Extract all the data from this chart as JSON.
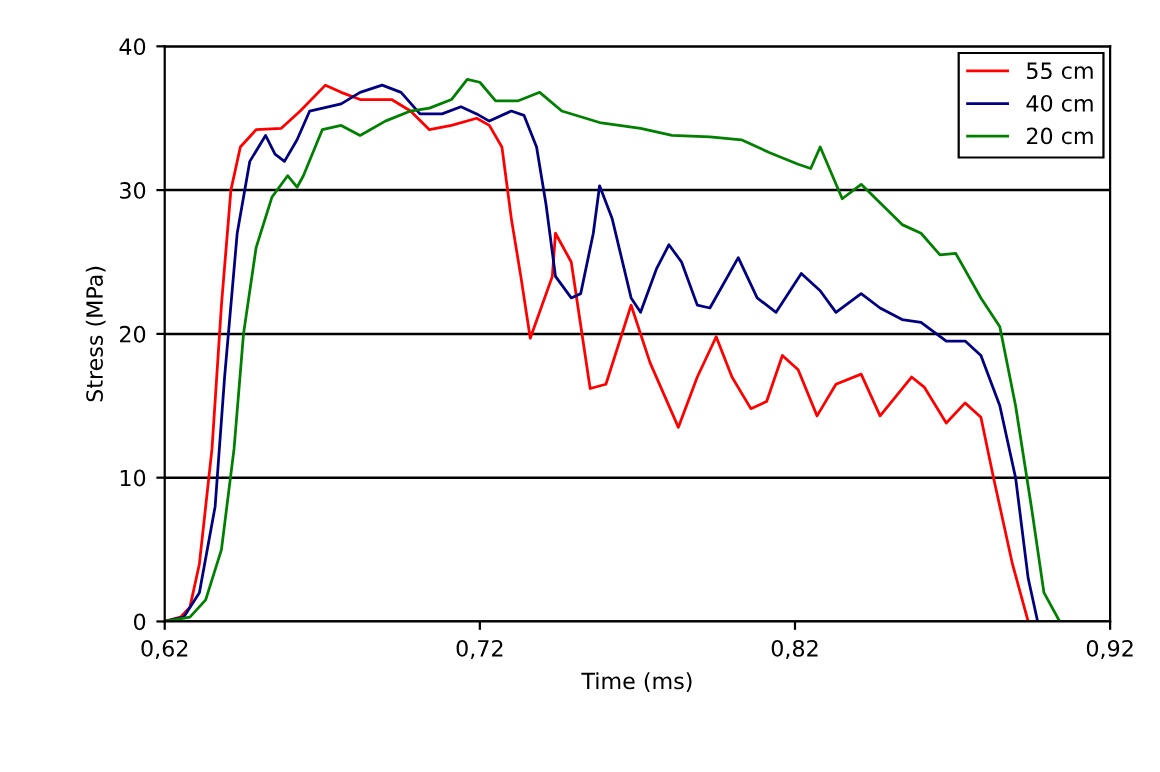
{
  "chart_data": {
    "type": "line",
    "xlabel": "Time (ms)",
    "ylabel": "Stress (MPa)",
    "xlim": [
      0.62,
      0.92
    ],
    "ylim": [
      0,
      40
    ],
    "xticks": [
      {
        "value": 0.62,
        "label": "0,62"
      },
      {
        "value": 0.72,
        "label": "0,72"
      },
      {
        "value": 0.82,
        "label": "0,82"
      },
      {
        "value": 0.92,
        "label": "0,92"
      }
    ],
    "yticks": [
      0,
      10,
      20,
      30,
      40
    ],
    "grid": "y",
    "legend": "top right",
    "marker": "none",
    "line_style": "solid",
    "series": [
      {
        "name": "55 cm",
        "color": "#ff0000",
        "x": [
          0.62,
          0.625,
          0.628,
          0.631,
          0.635,
          0.638,
          0.641,
          0.644,
          0.649,
          0.657,
          0.663,
          0.671,
          0.676,
          0.682,
          0.692,
          0.698,
          0.704,
          0.711,
          0.719,
          0.723,
          0.727,
          0.73,
          0.733,
          0.736,
          0.743,
          0.744,
          0.749,
          0.755,
          0.76,
          0.768,
          0.774,
          0.783,
          0.789,
          0.795,
          0.8,
          0.806,
          0.811,
          0.816,
          0.821,
          0.827,
          0.833,
          0.841,
          0.847,
          0.857,
          0.861,
          0.868,
          0.874,
          0.879,
          0.883,
          0.889,
          0.894
        ],
        "values": [
          0,
          0.3,
          1,
          4,
          12,
          22,
          30,
          33,
          34.2,
          34.3,
          35.5,
          37.3,
          36.8,
          36.3,
          36.3,
          35.5,
          34.2,
          34.5,
          35,
          34.5,
          33,
          28,
          24,
          19.7,
          24,
          27,
          25,
          16.2,
          16.5,
          22,
          18,
          13.5,
          17,
          19.8,
          17,
          14.8,
          15.3,
          18.5,
          17.5,
          14.3,
          16.5,
          17.2,
          14.3,
          17,
          16.3,
          13.8,
          15.2,
          14.2,
          10,
          4,
          0
        ]
      },
      {
        "name": "40 cm",
        "color": "#000080",
        "x": [
          0.62,
          0.626,
          0.631,
          0.636,
          0.639,
          0.643,
          0.647,
          0.652,
          0.655,
          0.658,
          0.662,
          0.666,
          0.676,
          0.682,
          0.689,
          0.695,
          0.701,
          0.708,
          0.714,
          0.719,
          0.723,
          0.73,
          0.734,
          0.738,
          0.741,
          0.744,
          0.749,
          0.752,
          0.756,
          0.758,
          0.762,
          0.768,
          0.771,
          0.776,
          0.78,
          0.784,
          0.789,
          0.793,
          0.802,
          0.808,
          0.814,
          0.822,
          0.828,
          0.833,
          0.841,
          0.847,
          0.854,
          0.86,
          0.868,
          0.874,
          0.879,
          0.885,
          0.89,
          0.894,
          0.897
        ],
        "values": [
          0,
          0.3,
          2,
          8,
          17,
          27,
          32,
          33.8,
          32.5,
          32,
          33.5,
          35.5,
          36,
          36.8,
          37.3,
          36.8,
          35.3,
          35.3,
          35.8,
          35.3,
          34.8,
          35.5,
          35.2,
          33,
          29,
          24,
          22.5,
          22.8,
          27,
          30.3,
          28,
          22.5,
          21.5,
          24.5,
          26.2,
          25,
          22,
          21.8,
          25.3,
          22.5,
          21.5,
          24.2,
          23,
          21.5,
          22.8,
          21.8,
          21,
          20.8,
          19.5,
          19.5,
          18.5,
          15,
          10,
          3,
          0
        ]
      },
      {
        "name": "20 cm",
        "color": "#008000",
        "x": [
          0.62,
          0.628,
          0.633,
          0.638,
          0.642,
          0.645,
          0.649,
          0.654,
          0.659,
          0.662,
          0.664,
          0.67,
          0.676,
          0.682,
          0.69,
          0.698,
          0.704,
          0.711,
          0.716,
          0.72,
          0.725,
          0.732,
          0.739,
          0.746,
          0.758,
          0.771,
          0.781,
          0.793,
          0.803,
          0.812,
          0.821,
          0.825,
          0.828,
          0.835,
          0.841,
          0.854,
          0.86,
          0.866,
          0.871,
          0.879,
          0.885,
          0.89,
          0.895,
          0.899,
          0.904
        ],
        "values": [
          0,
          0.3,
          1.5,
          5,
          12,
          20,
          26,
          29.5,
          31,
          30.2,
          31,
          34.2,
          34.5,
          33.8,
          34.8,
          35.5,
          35.7,
          36.3,
          37.7,
          37.5,
          36.2,
          36.2,
          36.8,
          35.5,
          34.7,
          34.3,
          33.8,
          33.7,
          33.5,
          32.6,
          31.8,
          31.5,
          33,
          29.4,
          30.4,
          27.6,
          27,
          25.5,
          25.6,
          22.5,
          20.5,
          15,
          8,
          2,
          0
        ]
      }
    ]
  }
}
